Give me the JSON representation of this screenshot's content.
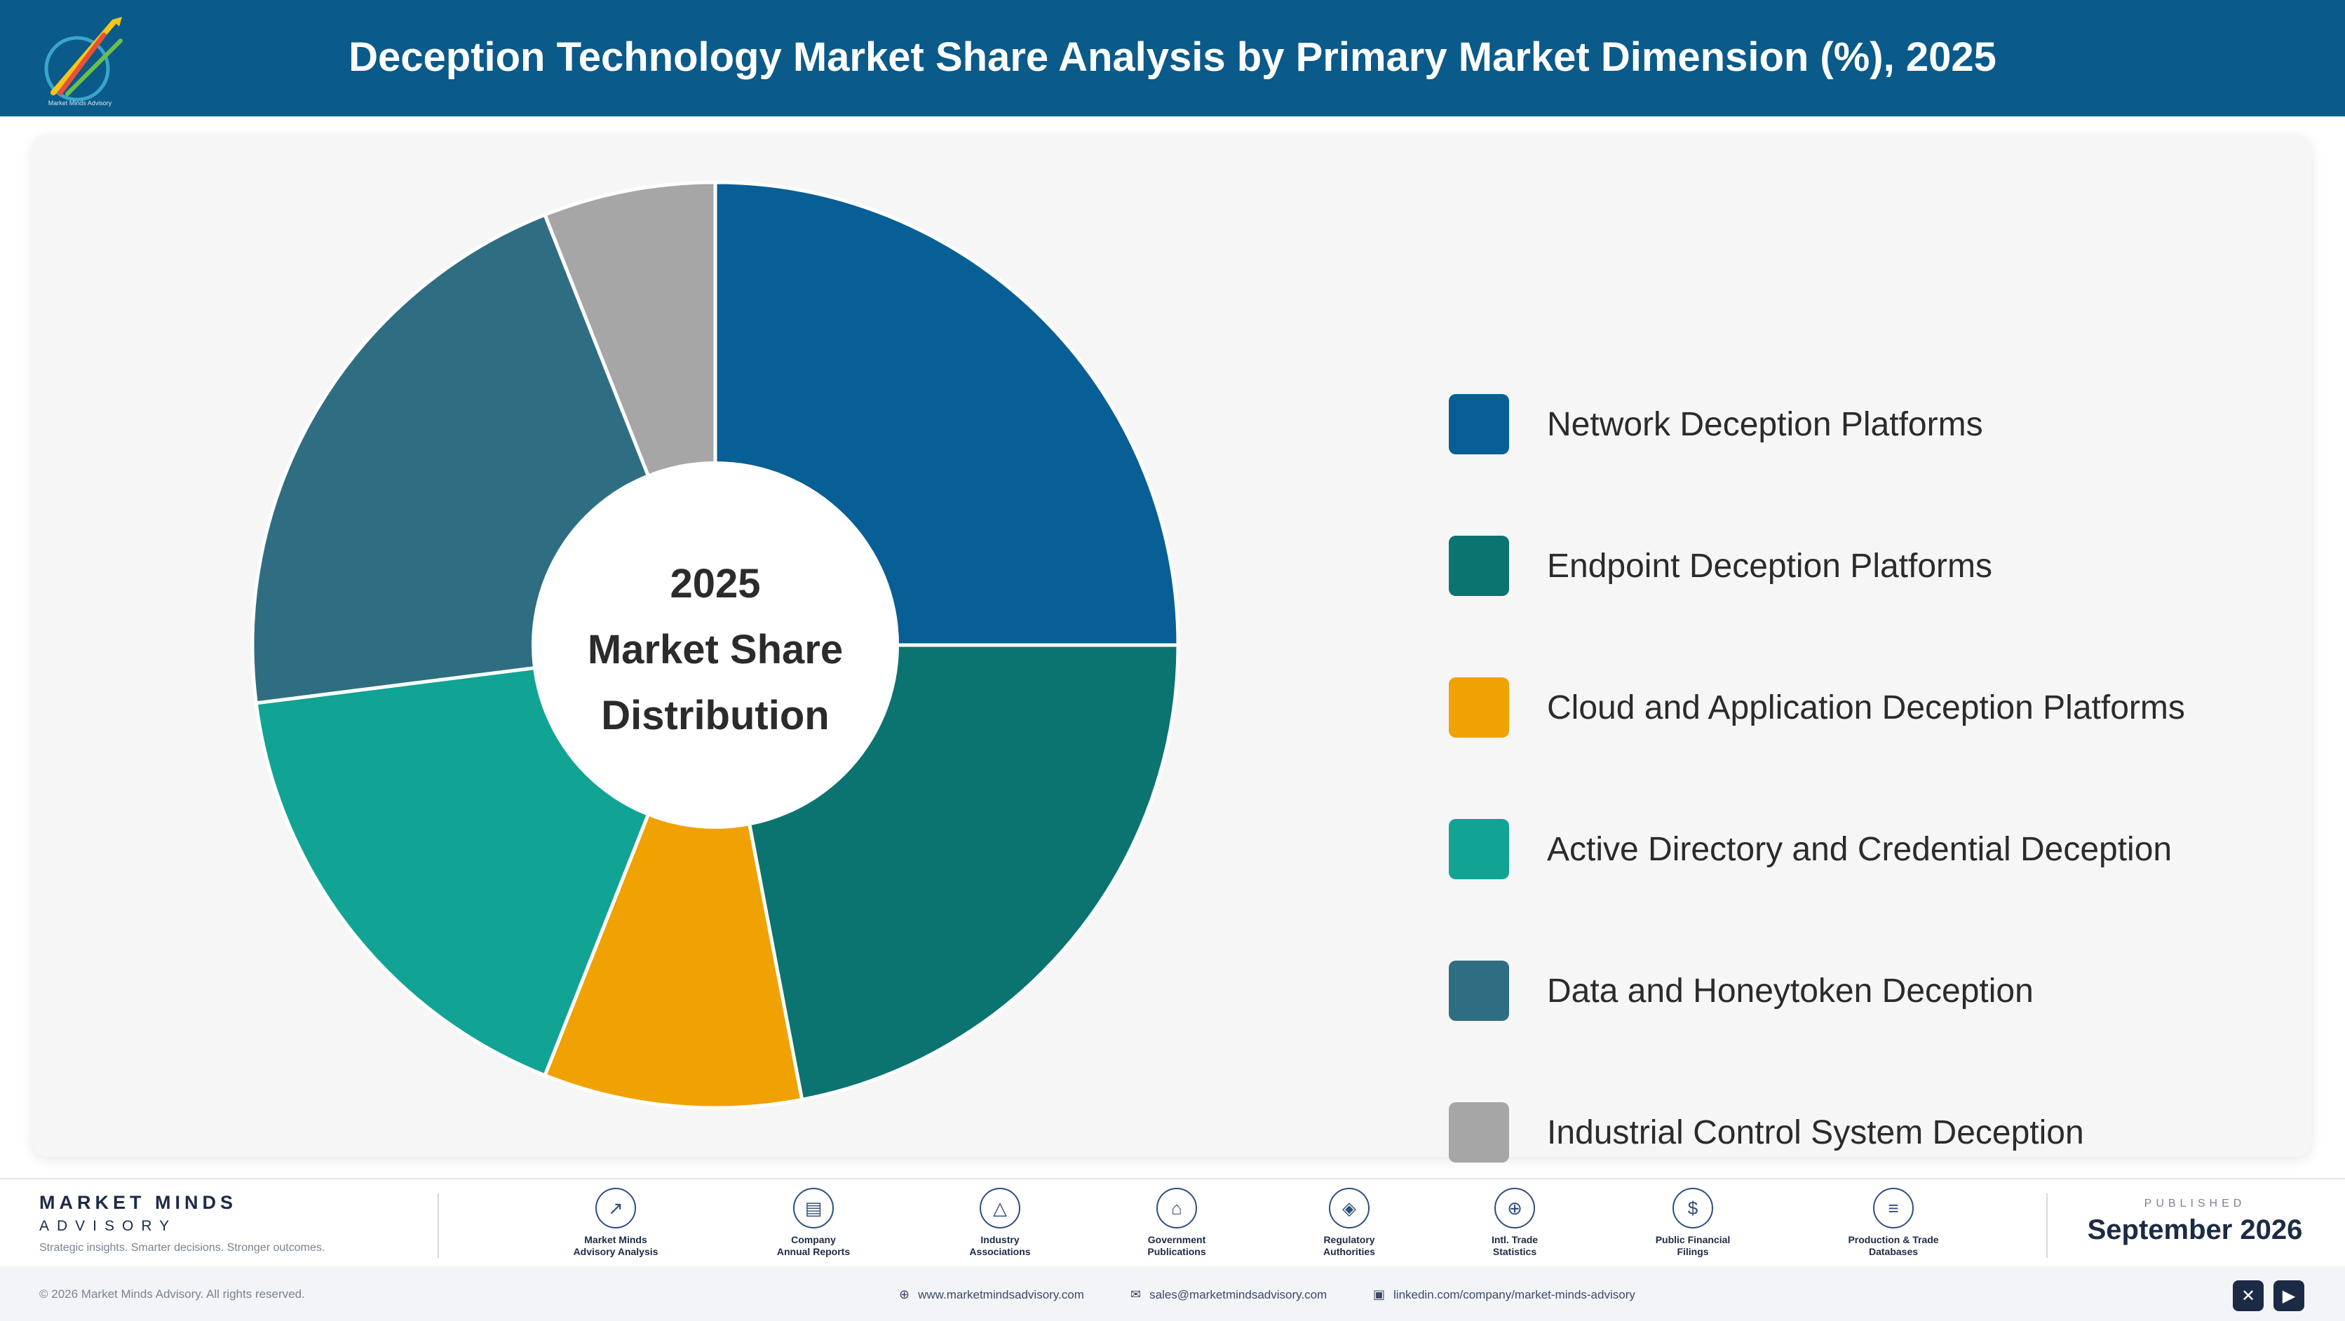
{
  "header": {
    "title": "Deception Technology Market Share Analysis by Primary Market Dimension (%), 2025"
  },
  "chart_data": {
    "type": "pie",
    "title": "Deception Technology Market Share Analysis by Primary Market Dimension (%), 2025",
    "center_label": [
      "2025",
      "Market Share",
      "Distribution"
    ],
    "categories": [
      "Network Deception Platforms",
      "Endpoint Deception Platforms",
      "Cloud and Application Deception Platforms",
      "Active Directory and Credential Deception",
      "Data and Honeytoken Deception",
      "Industrial Control System Deception"
    ],
    "values": [
      25,
      22,
      9,
      17,
      21,
      6
    ],
    "colors": [
      "#085f95",
      "#0b7470",
      "#f0a202",
      "#11a394",
      "#2f6e82",
      "#a6a6a6"
    ],
    "legend_placement": "right"
  },
  "footer": {
    "brand_name": "MARKET MINDS",
    "brand_sub": "ADVISORY",
    "brand_tag": "Strategic insights. Smarter decisions. Stronger outcomes.",
    "sources": [
      {
        "label": "Market Minds\nAdvisory Analysis",
        "icon": "trend-chart-icon"
      },
      {
        "label": "Company\nAnnual Reports",
        "icon": "document-icon"
      },
      {
        "label": "Industry\nAssociations",
        "icon": "network-icon"
      },
      {
        "label": "Government\nPublications",
        "icon": "building-icon"
      },
      {
        "label": "Regulatory\nAuthorities",
        "icon": "shield-icon"
      },
      {
        "label": "Intl. Trade\nStatistics",
        "icon": "globe-icon"
      },
      {
        "label": "Public Financial\nFilings",
        "icon": "dollar-icon"
      },
      {
        "label": "Production & Trade\nDatabases",
        "icon": "database-icon"
      }
    ],
    "published_label": "PUBLISHED",
    "published_date": "September 2026",
    "copyright": "© 2026 Market Minds Advisory. All rights reserved.",
    "website": "www.marketmindsadvisory.com",
    "email": "sales@marketmindsadvisory.com",
    "linkedin": "linkedin.com/company/market-minds-advisory"
  }
}
